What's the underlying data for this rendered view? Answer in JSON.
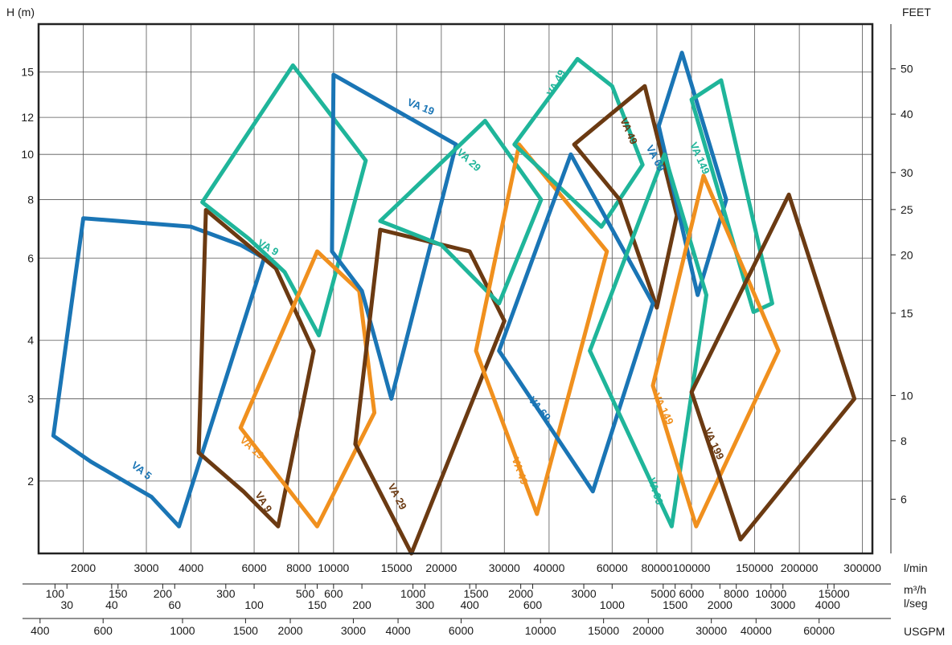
{
  "chart_data": {
    "type": "line",
    "title": "",
    "colors": {
      "blue": "#1a75b5",
      "teal": "#1fb59a",
      "brown": "#6b3a12",
      "orange": "#f0901e",
      "grid": "#555555",
      "frame": "#222222"
    },
    "xlabel": "l/min",
    "x_scale": "log",
    "xlim": [
      1500,
      320000
    ],
    "ylabel": "H (m)",
    "y_scale": "log",
    "ylim": [
      1.4,
      19
    ],
    "y2label": "FEET",
    "grid": true,
    "x_ticks": [
      "2000",
      "3000",
      "4000",
      "6000",
      "8000",
      "10000",
      "15000",
      "20000",
      "30000",
      "40000",
      "60000",
      "80000",
      "100000",
      "150000",
      "200000",
      "300000"
    ],
    "y_ticks": [
      "2",
      "3",
      "4",
      "6",
      "8",
      "10",
      "12",
      "15"
    ],
    "y2_ticks": [
      "6",
      "8",
      "10",
      "15",
      "20",
      "25",
      "30",
      "40",
      "50"
    ],
    "secondary_axes": [
      {
        "unit": "m³/h",
        "ticks": [
          "100",
          "150",
          "200",
          "300",
          "500",
          "600",
          "1000",
          "1500",
          "2000",
          "3000",
          "5000",
          "6000",
          "8000",
          "10000",
          "15000"
        ]
      },
      {
        "unit": "l/seg",
        "ticks": [
          "30",
          "40",
          "60",
          "100",
          "150",
          "200",
          "300",
          "400",
          "600",
          "1000",
          "1500",
          "2000",
          "3000",
          "4000"
        ]
      },
      {
        "unit": "USGPM",
        "ticks": [
          "400",
          "600",
          "1000",
          "1500",
          "2000",
          "3000",
          "4000",
          "6000",
          "10000",
          "15000",
          "20000",
          "30000",
          "40000",
          "60000"
        ]
      }
    ],
    "series": [
      {
        "name": "VA 5",
        "color": "blue",
        "points": [
          [
            1650,
            2.5
          ],
          [
            2100,
            2.2
          ],
          [
            2600,
            2.0
          ],
          [
            3100,
            1.85
          ],
          [
            3700,
            1.6
          ],
          [
            6400,
            6.0
          ],
          [
            5500,
            6.4
          ],
          [
            4000,
            7.0
          ],
          [
            2000,
            7.3
          ],
          [
            1650,
            2.5
          ]
        ]
      },
      {
        "name": "VA 9",
        "color": "brown",
        "points": [
          [
            4400,
            7.6
          ],
          [
            6900,
            5.7
          ],
          [
            8800,
            3.8
          ],
          [
            7000,
            1.6
          ],
          [
            5600,
            1.9
          ],
          [
            4200,
            2.3
          ],
          [
            4400,
            7.6
          ]
        ]
      },
      {
        "name": "VA 9",
        "color": "teal",
        "points": [
          [
            4300,
            7.9
          ],
          [
            7700,
            15.5
          ],
          [
            12300,
            9.7
          ],
          [
            9100,
            4.1
          ],
          [
            7300,
            5.6
          ],
          [
            5800,
            6.6
          ],
          [
            4300,
            7.9
          ]
        ]
      },
      {
        "name": "VA 19",
        "color": "orange",
        "points": [
          [
            5500,
            2.6
          ],
          [
            9000,
            6.2
          ],
          [
            11800,
            5.1
          ],
          [
            13000,
            2.8
          ],
          [
            9000,
            1.6
          ],
          [
            5500,
            2.6
          ]
        ]
      },
      {
        "name": "VA 19",
        "color": "blue",
        "points": [
          [
            10000,
            14.8
          ],
          [
            22000,
            10.5
          ],
          [
            14500,
            3.0
          ],
          [
            12000,
            5.1
          ],
          [
            9900,
            6.2
          ],
          [
            10000,
            14.8
          ]
        ]
      },
      {
        "name": "VA 29",
        "color": "brown",
        "points": [
          [
            13500,
            6.9
          ],
          [
            24000,
            6.2
          ],
          [
            30000,
            4.4
          ],
          [
            16500,
            1.4
          ],
          [
            11500,
            2.4
          ],
          [
            13500,
            6.9
          ]
        ]
      },
      {
        "name": "VA 29",
        "color": "teal",
        "points": [
          [
            13500,
            7.2
          ],
          [
            26500,
            11.8
          ],
          [
            38000,
            8.0
          ],
          [
            29000,
            4.8
          ],
          [
            20000,
            6.4
          ],
          [
            13500,
            7.2
          ]
        ]
      },
      {
        "name": "VA 49",
        "color": "orange",
        "points": [
          [
            33000,
            10.5
          ],
          [
            58000,
            6.2
          ],
          [
            37000,
            1.7
          ],
          [
            25000,
            3.8
          ],
          [
            33000,
            10.5
          ]
        ]
      },
      {
        "name": "VA 49",
        "color": "teal",
        "points": [
          [
            32000,
            10.5
          ],
          [
            48000,
            16.0
          ],
          [
            60000,
            14.0
          ],
          [
            73000,
            9.5
          ],
          [
            56000,
            7.0
          ],
          [
            32000,
            10.5
          ]
        ]
      },
      {
        "name": "VA 49",
        "color": "brown",
        "points": [
          [
            47000,
            10.5
          ],
          [
            74000,
            14.0
          ],
          [
            91000,
            7.4
          ],
          [
            80000,
            4.7
          ],
          [
            63000,
            8.0
          ],
          [
            47000,
            10.5
          ]
        ]
      },
      {
        "name": "VA 69",
        "color": "blue",
        "points": [
          [
            29000,
            3.8
          ],
          [
            46000,
            10.0
          ],
          [
            78000,
            4.8
          ],
          [
            53000,
            1.9
          ],
          [
            29000,
            3.8
          ]
        ]
      },
      {
        "name": "VA 69",
        "color": "blue",
        "points": [
          [
            81000,
            11.5
          ],
          [
            94000,
            16.5
          ],
          [
            125000,
            8.0
          ],
          [
            104000,
            5.0
          ],
          [
            81000,
            11.5
          ]
        ]
      },
      {
        "name": "VA 99",
        "color": "teal",
        "points": [
          [
            52000,
            3.8
          ],
          [
            84000,
            10.0
          ],
          [
            110000,
            5.0
          ],
          [
            88000,
            1.6
          ],
          [
            52000,
            3.8
          ]
        ]
      },
      {
        "name": "VA 149",
        "color": "teal",
        "points": [
          [
            100000,
            13.1
          ],
          [
            121000,
            14.4
          ],
          [
            168000,
            4.8
          ],
          [
            149000,
            4.6
          ],
          [
            100000,
            13.1
          ]
        ]
      },
      {
        "name": "VA 149",
        "color": "orange",
        "points": [
          [
            78000,
            3.2
          ],
          [
            108000,
            9.0
          ],
          [
            175000,
            3.8
          ],
          [
            103000,
            1.6
          ],
          [
            78000,
            3.2
          ]
        ]
      },
      {
        "name": "VA 199",
        "color": "brown",
        "points": [
          [
            100000,
            3.1
          ],
          [
            187000,
            8.2
          ],
          [
            285000,
            3.0
          ],
          [
            137000,
            1.5
          ],
          [
            100000,
            3.1
          ]
        ]
      }
    ],
    "labels": [
      {
        "text": "VA 5",
        "color": "blue",
        "x": 2900,
        "y": 2.1,
        "angle": 38
      },
      {
        "text": "VA 9",
        "color": "teal",
        "x": 6550,
        "y": 6.3,
        "angle": 30
      },
      {
        "text": "VA 9",
        "color": "brown",
        "x": 6350,
        "y": 1.8,
        "angle": 58
      },
      {
        "text": "VA 19",
        "color": "orange",
        "x": 5900,
        "y": 2.35,
        "angle": 42
      },
      {
        "text": "VA 19",
        "color": "blue",
        "x": 17500,
        "y": 12.6,
        "angle": 22
      },
      {
        "text": "VA 29",
        "color": "teal",
        "x": 23800,
        "y": 9.7,
        "angle": 42
      },
      {
        "text": "VA 29",
        "color": "brown",
        "x": 15000,
        "y": 1.85,
        "angle": 62
      },
      {
        "text": "VA 49",
        "color": "teal",
        "x": 42000,
        "y": 14.2,
        "angle": -62
      },
      {
        "text": "VA 49",
        "color": "brown",
        "x": 66500,
        "y": 11.2,
        "angle": 66
      },
      {
        "text": "VA 49",
        "color": "orange",
        "x": 33000,
        "y": 2.1,
        "angle": 70
      },
      {
        "text": "VA 69",
        "color": "blue",
        "x": 79000,
        "y": 9.8,
        "angle": 62
      },
      {
        "text": "VA 69",
        "color": "blue",
        "x": 37500,
        "y": 2.85,
        "angle": 50
      },
      {
        "text": "VA 99",
        "color": "teal",
        "x": 79000,
        "y": 1.9,
        "angle": 72
      },
      {
        "text": "VA 149",
        "color": "teal",
        "x": 105000,
        "y": 9.8,
        "angle": 66
      },
      {
        "text": "VA 149",
        "color": "orange",
        "x": 83000,
        "y": 2.85,
        "angle": 64
      },
      {
        "text": "VA 199",
        "color": "brown",
        "x": 115000,
        "y": 2.4,
        "angle": 65
      }
    ]
  }
}
